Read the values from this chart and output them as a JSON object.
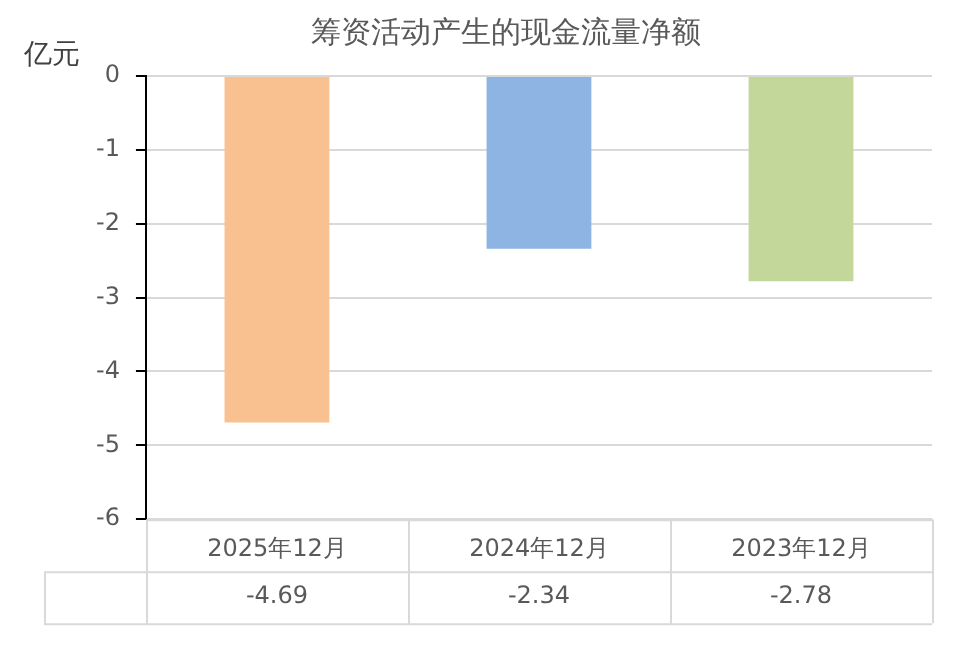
{
  "chart_data": {
    "type": "bar",
    "title": "筹资活动产生的现金流量净额",
    "ylabel": "亿元",
    "categories": [
      "2025年12月",
      "2024年12月",
      "2023年12月"
    ],
    "values": [
      -4.69,
      -2.34,
      -2.78
    ],
    "colors": [
      "#f8c18f",
      "#8eb4e3",
      "#c4d79b"
    ],
    "ylim": [
      -6,
      0
    ],
    "yticks": [
      0,
      -1,
      -2,
      -3,
      -4,
      -5,
      -6
    ],
    "grid": "y",
    "legend": false,
    "data_labels": true
  }
}
